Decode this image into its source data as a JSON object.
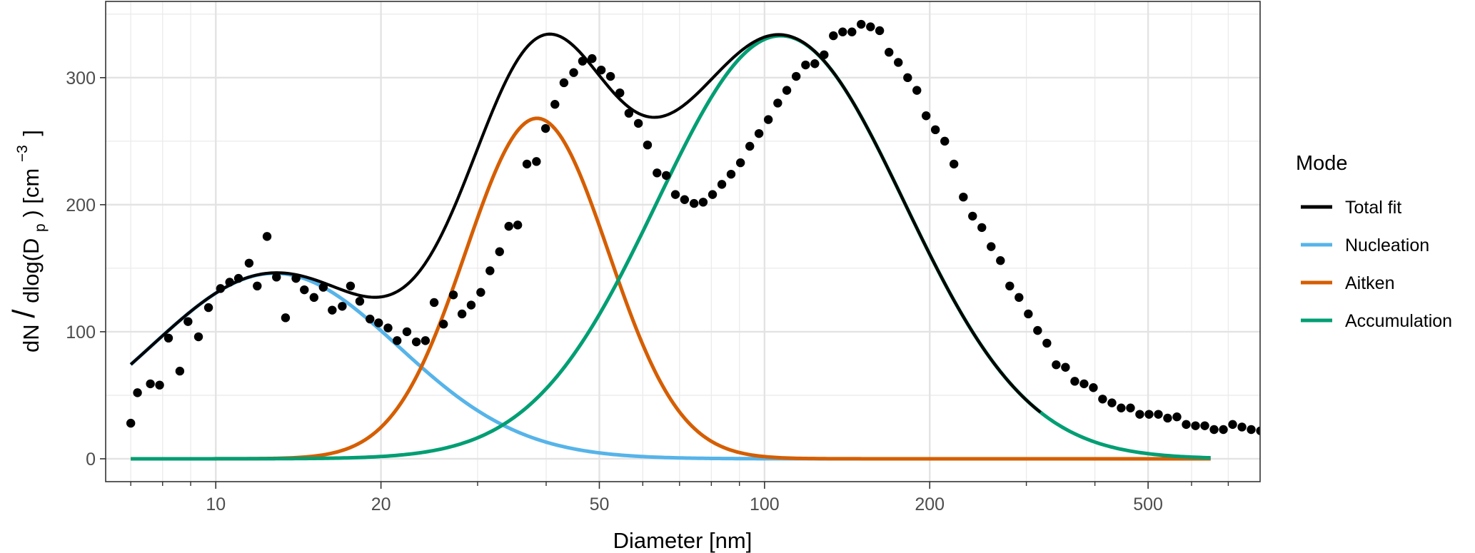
{
  "chart_data": {
    "type": "line",
    "xlabel": "Diameter [nm]",
    "ylabel": {
      "main": "dN",
      "slash": "/",
      "pre": "dlog(D",
      "sub": "p",
      "post": ") [cm",
      "sup": "−3",
      "close": "]"
    },
    "x_scale": "log",
    "xlim": [
      6.3,
      800
    ],
    "ylim": [
      -18,
      360
    ],
    "x_ticks": [
      {
        "value": 10,
        "label": "10"
      },
      {
        "value": 20,
        "label": "20"
      },
      {
        "value": 50,
        "label": "50"
      },
      {
        "value": 100,
        "label": "100"
      },
      {
        "value": 200,
        "label": "200"
      },
      {
        "value": 500,
        "label": "500"
      }
    ],
    "x_minor_ticks": [
      7,
      8,
      9,
      30,
      40,
      60,
      70,
      80,
      90,
      300,
      400,
      600,
      700
    ],
    "y_ticks": [
      {
        "value": 0,
        "label": "0"
      },
      {
        "value": 100,
        "label": "100"
      },
      {
        "value": 200,
        "label": "200"
      },
      {
        "value": 300,
        "label": "300"
      }
    ],
    "grid": true,
    "legend": {
      "title": "Mode",
      "position": "right",
      "entries": [
        {
          "label": "Total fit",
          "color": "#000000"
        },
        {
          "label": "Nucleation",
          "color": "#56B4E9"
        },
        {
          "label": "Aitken",
          "color": "#D55E00"
        },
        {
          "label": "Accumulation",
          "color": "#009E73"
        }
      ]
    },
    "modes": [
      {
        "name": "Nucleation",
        "color": "#56B4E9",
        "peak": 146,
        "median_nm": 12.8,
        "gsd": 1.68
      },
      {
        "name": "Aitken",
        "color": "#D55E00",
        "peak": 268,
        "median_nm": 38.5,
        "gsd": 1.35
      },
      {
        "name": "Accumulation",
        "color": "#009E73",
        "peak": 333,
        "median_nm": 107,
        "gsd": 1.68
      }
    ],
    "total_fit": {
      "name": "Total fit",
      "color": "#000000"
    },
    "curve_range": [
      7.0,
      650
    ],
    "points": [
      [
        7.0,
        28
      ],
      [
        7.2,
        52
      ],
      [
        7.6,
        59
      ],
      [
        7.9,
        58
      ],
      [
        8.2,
        95
      ],
      [
        8.6,
        69
      ],
      [
        8.9,
        108
      ],
      [
        9.3,
        96
      ],
      [
        9.7,
        119
      ],
      [
        10.2,
        134
      ],
      [
        10.6,
        139
      ],
      [
        11.0,
        142
      ],
      [
        11.5,
        154
      ],
      [
        11.9,
        136
      ],
      [
        12.4,
        175
      ],
      [
        12.9,
        143
      ],
      [
        13.4,
        111
      ],
      [
        14.0,
        142
      ],
      [
        14.5,
        133
      ],
      [
        15.1,
        127
      ],
      [
        15.7,
        135
      ],
      [
        16.3,
        117
      ],
      [
        17.0,
        120
      ],
      [
        17.6,
        136
      ],
      [
        18.3,
        124
      ],
      [
        19.1,
        110
      ],
      [
        19.8,
        107
      ],
      [
        20.6,
        103
      ],
      [
        21.4,
        93
      ],
      [
        22.3,
        100
      ],
      [
        23.2,
        92
      ],
      [
        24.1,
        93
      ],
      [
        25.0,
        123
      ],
      [
        26.0,
        106
      ],
      [
        27.1,
        129
      ],
      [
        28.1,
        114
      ],
      [
        29.2,
        121
      ],
      [
        30.4,
        131
      ],
      [
        31.6,
        148
      ],
      [
        32.9,
        163
      ],
      [
        34.2,
        183
      ],
      [
        35.5,
        184
      ],
      [
        36.9,
        232
      ],
      [
        38.4,
        234
      ],
      [
        39.9,
        260
      ],
      [
        41.5,
        279
      ],
      [
        43.1,
        296
      ],
      [
        44.9,
        304
      ],
      [
        46.6,
        313
      ],
      [
        48.5,
        315
      ],
      [
        50.4,
        306
      ],
      [
        52.4,
        301
      ],
      [
        54.5,
        288
      ],
      [
        56.6,
        272
      ],
      [
        58.9,
        264
      ],
      [
        61.2,
        247
      ],
      [
        63.7,
        225
      ],
      [
        66.2,
        223
      ],
      [
        68.8,
        208
      ],
      [
        71.5,
        204
      ],
      [
        74.4,
        201
      ],
      [
        77.3,
        202
      ],
      [
        80.4,
        208
      ],
      [
        83.6,
        216
      ],
      [
        86.9,
        224
      ],
      [
        90.4,
        233
      ],
      [
        94.0,
        246
      ],
      [
        97.7,
        256
      ],
      [
        101.6,
        267
      ],
      [
        105.7,
        280
      ],
      [
        109.8,
        290
      ],
      [
        114.2,
        301
      ],
      [
        118.8,
        310
      ],
      [
        123.5,
        311
      ],
      [
        128.4,
        318
      ],
      [
        133.5,
        333
      ],
      [
        138.8,
        336
      ],
      [
        144.3,
        336
      ],
      [
        150.0,
        342
      ],
      [
        156.0,
        340
      ],
      [
        162.1,
        337
      ],
      [
        168.6,
        320
      ],
      [
        175.3,
        312
      ],
      [
        182.3,
        300
      ],
      [
        189.5,
        290
      ],
      [
        197.0,
        270
      ],
      [
        204.8,
        259
      ],
      [
        213.0,
        250
      ],
      [
        221.4,
        232
      ],
      [
        230.3,
        206
      ],
      [
        239.4,
        191
      ],
      [
        248.9,
        182
      ],
      [
        258.8,
        167
      ],
      [
        269.1,
        156
      ],
      [
        279.8,
        136
      ],
      [
        290.9,
        127
      ],
      [
        302.5,
        114
      ],
      [
        314.5,
        101
      ],
      [
        327.0,
        91
      ],
      [
        340.0,
        74
      ],
      [
        353.5,
        72
      ],
      [
        367.6,
        61
      ],
      [
        382.2,
        59
      ],
      [
        397.4,
        56
      ],
      [
        413.1,
        47
      ],
      [
        429.6,
        44
      ],
      [
        446.6,
        40
      ],
      [
        464.4,
        40
      ],
      [
        482.8,
        35
      ],
      [
        502.0,
        35
      ],
      [
        522.0,
        35
      ],
      [
        542.7,
        32
      ],
      [
        564.3,
        33
      ],
      [
        586.7,
        27
      ],
      [
        610.0,
        26
      ],
      [
        634.3,
        26
      ],
      [
        659.5,
        23
      ],
      [
        685.7,
        23
      ],
      [
        712.9,
        27
      ],
      [
        741.3,
        25
      ],
      [
        770.7,
        23
      ],
      [
        801.4,
        22
      ]
    ]
  }
}
